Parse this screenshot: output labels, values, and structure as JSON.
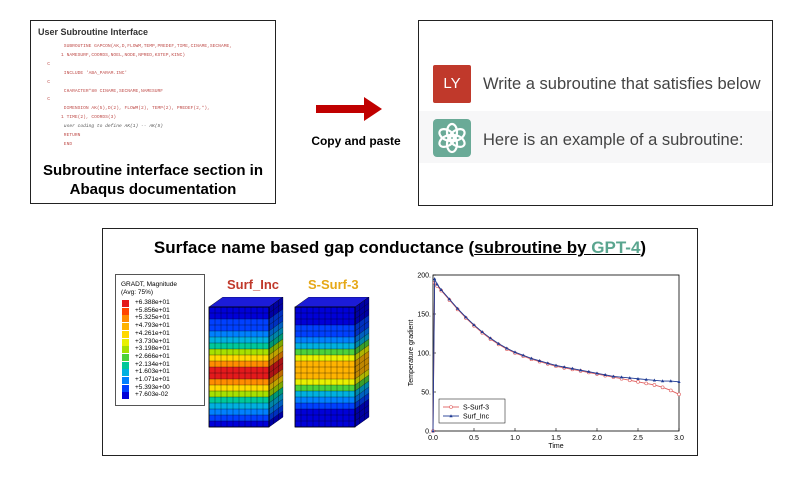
{
  "doc": {
    "header": "User Subroutine Interface",
    "code": [
      "         SUBROUTINE GAPCON(AK,D,FLOWM,TEMP,PREDEF,TIME,CINAME,SECNAME,",
      "        1 NAMESURF,COORDS,NOEL,NODE,NPRED,KSTEP,KINC)",
      "   C",
      "         INCLUDE 'ABA_PARAM.INC'",
      "   C",
      "         CHARACTER*80 CINAME,SECNAME,NAMESURF",
      "   C",
      "         DIMENSION AK(5),D(2), FLOWM(2), TEMP(2), PREDEF(2,*),",
      "        1 TIME(2), COORDS(3)",
      "         user coding to define AK(1) -- AK(5)",
      "         RETURN",
      "         END"
    ],
    "caption_line1": "Subroutine interface section in",
    "caption_line2": "Abaqus documentation"
  },
  "arrow_label": "Copy and paste",
  "chat": {
    "user_avatar": "LY",
    "user_text": "Write a subroutine that satisfies below",
    "gpt_avatar_icon": "openai-logo-icon",
    "gpt_text": "Here is an example of a subroutine:"
  },
  "result": {
    "title_prefix": "Surface name based gap conductance (",
    "title_sub": "subroutine by ",
    "title_gpt": "GPT-4",
    "title_suffix": ")",
    "legend_title_1": "GRADT, Magnitude",
    "legend_title_2": "(Avg: 75%)",
    "legend_values": [
      "+6.388e+01",
      "+5.856e+01",
      "+5.325e+01",
      "+4.793e+01",
      "+4.261e+01",
      "+3.730e+01",
      "+3.198e+01",
      "+2.666e+01",
      "+2.134e+01",
      "+1.603e+01",
      "+1.071e+01",
      "+5.393e+00",
      "+7.603e-02"
    ],
    "legend_colors": [
      "#e41a1c",
      "#ff4500",
      "#ff8c00",
      "#ffb300",
      "#ffd800",
      "#e8f000",
      "#a6e000",
      "#4cd23a",
      "#00c89a",
      "#00b0e0",
      "#0080ff",
      "#0040ff",
      "#0000d8"
    ],
    "model1_label": "Surf_Inc",
    "model1_color": "#c0392b",
    "model2_label": "S-Surf-3",
    "model2_color": "#e6a817"
  },
  "chart_data": {
    "type": "line",
    "xlabel": "Time",
    "ylabel": "Temperature gradient",
    "xlim": [
      0,
      3.0
    ],
    "ylim": [
      0,
      200
    ],
    "xticks": [
      "0.0",
      "0.5",
      "1.0",
      "1.5",
      "2.0",
      "2.5",
      "3.0"
    ],
    "yticks": [
      "0.",
      "50.",
      "100.",
      "150.",
      "200."
    ],
    "legend_position": "bottom-left",
    "series": [
      {
        "name": "S-Surf-3",
        "color": "#e06060",
        "x": [
          0.0,
          0.02,
          0.05,
          0.1,
          0.2,
          0.3,
          0.4,
          0.5,
          0.6,
          0.7,
          0.8,
          0.9,
          1.0,
          1.1,
          1.2,
          1.3,
          1.4,
          1.5,
          1.6,
          1.7,
          1.8,
          1.9,
          2.0,
          2.1,
          2.2,
          2.3,
          2.4,
          2.5,
          2.6,
          2.7,
          2.8,
          2.9,
          3.0
        ],
        "y": [
          0,
          190,
          186,
          180,
          168,
          156,
          145,
          135,
          126,
          118,
          111,
          105,
          100,
          96,
          92,
          89,
          86,
          83,
          81,
          79,
          77,
          75,
          73,
          71,
          69,
          67,
          65,
          63,
          61,
          59,
          56,
          52,
          47
        ]
      },
      {
        "name": "Surf_Inc",
        "color": "#1f3a93",
        "x": [
          0.0,
          0.02,
          0.05,
          0.1,
          0.2,
          0.3,
          0.4,
          0.5,
          0.6,
          0.7,
          0.8,
          0.9,
          1.0,
          1.1,
          1.2,
          1.3,
          1.4,
          1.5,
          1.6,
          1.7,
          1.8,
          1.9,
          2.0,
          2.1,
          2.2,
          2.3,
          2.4,
          2.5,
          2.6,
          2.7,
          2.8,
          2.9,
          3.0
        ],
        "y": [
          0,
          195,
          188,
          181,
          169,
          157,
          146,
          136,
          127,
          119,
          112,
          106,
          101,
          97,
          93,
          90,
          87,
          84,
          82,
          80,
          78,
          76,
          74,
          72,
          70,
          69,
          68,
          67,
          66,
          65,
          64,
          64,
          63
        ]
      }
    ]
  }
}
